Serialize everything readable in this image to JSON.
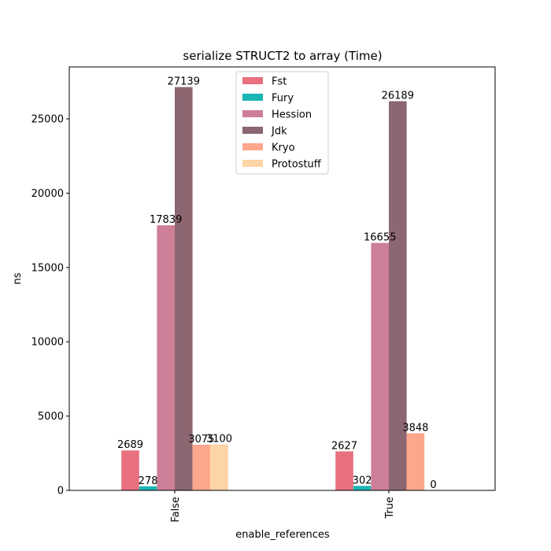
{
  "chart_data": {
    "type": "bar",
    "title": "serialize STRUCT2 to array (Time)",
    "xlabel": "enable_references",
    "ylabel": "ns",
    "categories": [
      "False",
      "True"
    ],
    "series": [
      {
        "name": "Fst",
        "values": [
          2689,
          2627
        ],
        "labels": [
          "2689",
          "2627"
        ],
        "color": "#e8707f"
      },
      {
        "name": "Fury",
        "values": [
          278,
          302
        ],
        "labels": [
          "278",
          "302"
        ],
        "color": "#1cb5b5"
      },
      {
        "name": "Hession",
        "values": [
          17839,
          16655
        ],
        "labels": [
          "17839",
          "16655"
        ],
        "color": "#cc7f96"
      },
      {
        "name": "Jdk",
        "values": [
          27139,
          26189
        ],
        "labels": [
          "27139",
          "26189"
        ],
        "color": "#8c6670"
      },
      {
        "name": "Kryo",
        "values": [
          3075,
          3848
        ],
        "labels": [
          "3075",
          "3848"
        ],
        "color": "#fca78c"
      },
      {
        "name": "Protostuff",
        "values": [
          3100,
          0
        ],
        "labels": [
          "3100",
          "0"
        ],
        "color": "#fdd4a6"
      }
    ],
    "ylim": [
      0,
      28496
    ],
    "yticks": [
      0,
      5000,
      10000,
      15000,
      20000,
      25000
    ],
    "grid": false,
    "legend_position": "top-center"
  }
}
